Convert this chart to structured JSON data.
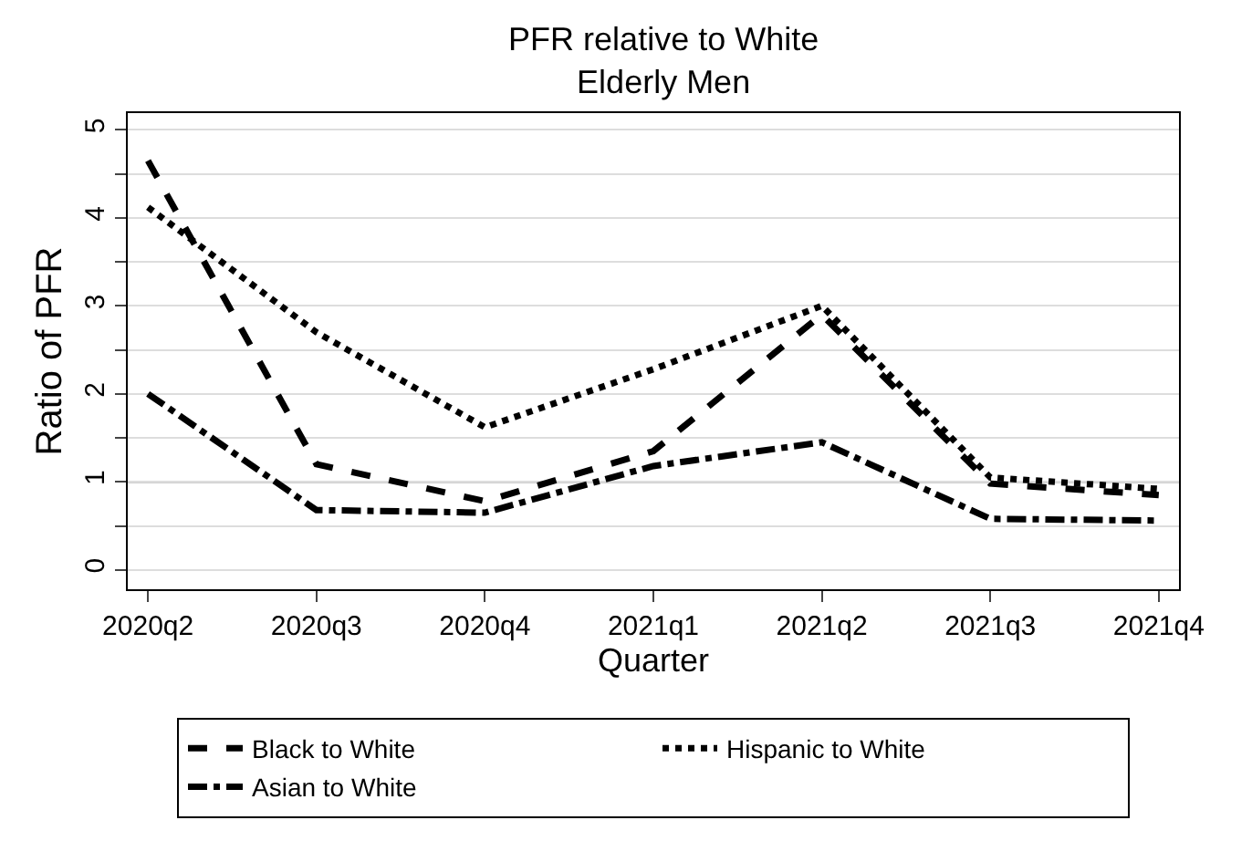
{
  "chart_data": {
    "type": "line",
    "title": "PFR relative to White",
    "subtitle": "Elderly Men",
    "xlabel": "Quarter",
    "ylabel": "Ratio of PFR",
    "categories": [
      "2020q2",
      "2020q3",
      "2020q4",
      "2021q1",
      "2021q2",
      "2021q3",
      "2021q4"
    ],
    "series": [
      {
        "name": "Black to White",
        "color": "#000000",
        "line_style": "dashed",
        "values": [
          4.65,
          1.2,
          0.78,
          1.35,
          2.9,
          0.98,
          0.85
        ]
      },
      {
        "name": "Hispanic to White",
        "color": "#000000",
        "line_style": "dotted",
        "values": [
          4.12,
          2.7,
          1.62,
          2.28,
          3.0,
          1.05,
          0.92
        ]
      },
      {
        "name": "Asian to White",
        "color": "#000000",
        "line_style": "dashdot",
        "values": [
          2.0,
          0.68,
          0.65,
          1.18,
          1.45,
          0.58,
          0.56
        ]
      }
    ],
    "ylim": [
      -0.22,
      5.19
    ],
    "yticks": [
      0,
      {
        "value": 0.5,
        "label": null
      },
      1,
      {
        "value": 1.5,
        "label": null
      },
      2,
      {
        "value": 2.5,
        "label": null
      },
      3,
      {
        "value": 3.5,
        "label": null
      },
      4,
      {
        "value": 4.5,
        "label": null
      },
      5
    ],
    "ref_lines": [
      {
        "axis": "y",
        "value": 1,
        "label": null,
        "color": "#a0a0a0"
      }
    ],
    "grid": "y",
    "legend": "bottom"
  }
}
